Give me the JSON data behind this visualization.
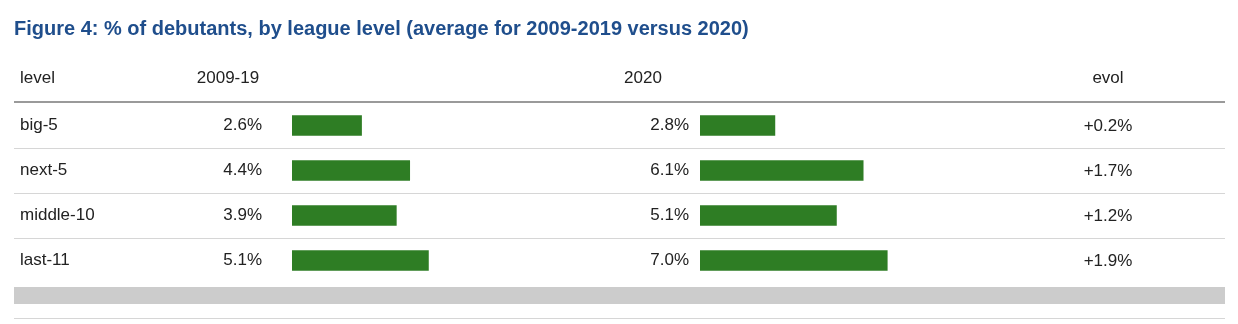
{
  "chart_data": [
    {
      "type": "bar",
      "orientation": "horizontal",
      "title": "Figure 4: % of debutants, by league level (average for 2009-2019 versus 2020)",
      "ylabel": "level",
      "categories": [
        "big-5",
        "next-5",
        "middle-10",
        "last-11"
      ],
      "series": [
        {
          "name": "2009-19",
          "color": "#2e7d24",
          "values": [
            2.6,
            4.4,
            3.9,
            5.1
          ],
          "value_labels": [
            "2.6%",
            "4.4%",
            "3.9%",
            "5.1%"
          ]
        }
      ],
      "tick_labels": "y"
    },
    {
      "type": "bar",
      "orientation": "horizontal",
      "categories": [
        null,
        null,
        null,
        null
      ],
      "series": [
        {
          "name": "2020",
          "color": "#2e7d24",
          "values": [
            2.8,
            6.1,
            5.1,
            7.0
          ],
          "value_labels": [
            "2.8%",
            "6.1%",
            "5.1%",
            "7.0%"
          ]
        }
      ],
      "tick_labels": false
    },
    {
      "type": "other",
      "title": "evol",
      "annotations": [
        "+0.2%",
        "+1.7%",
        "+1.2%",
        "+1.9%"
      ]
    }
  ]
}
